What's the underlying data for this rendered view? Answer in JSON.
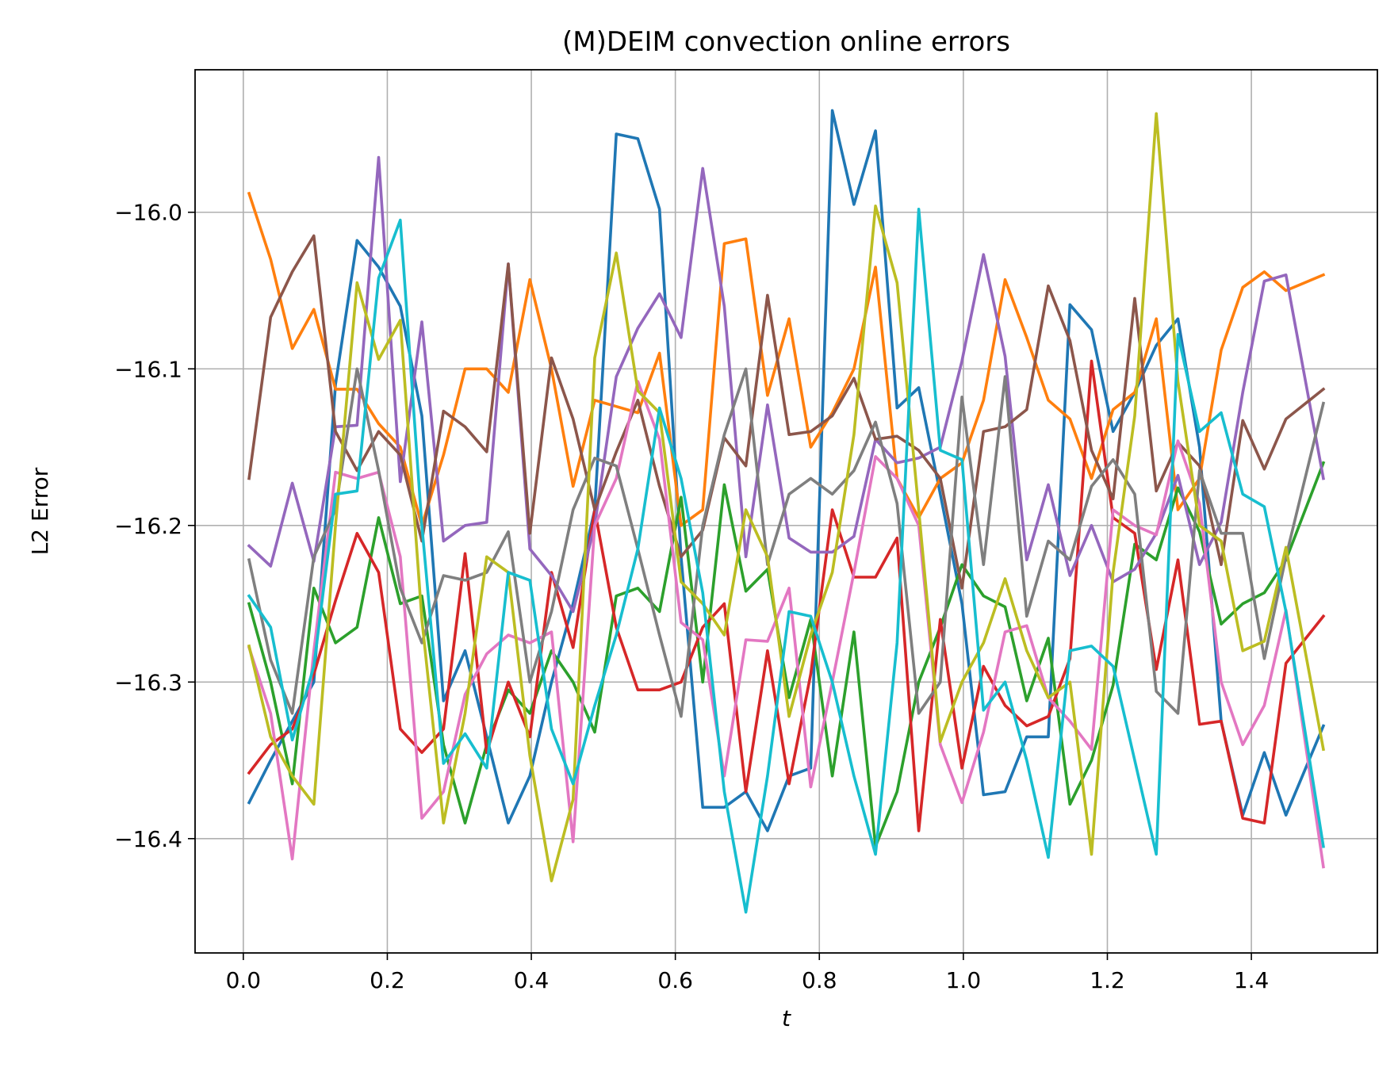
{
  "chart_data": {
    "type": "line",
    "title": "(M)DEIM convection online errors",
    "xlabel": "t",
    "ylabel": "L2 Error",
    "xlim": [
      -0.067,
      1.575
    ],
    "ylim": [
      -16.473,
      -15.909
    ],
    "xticks": [
      0.0,
      0.2,
      0.4,
      0.6,
      0.8,
      1.0,
      1.2,
      1.4
    ],
    "xtick_labels": [
      "0.0",
      "0.2",
      "0.4",
      "0.6",
      "0.8",
      "1.0",
      "1.2",
      "1.4"
    ],
    "yticks": [
      -16.0,
      -16.1,
      -16.2,
      -16.3,
      -16.4
    ],
    "ytick_labels": [
      "−16.0",
      "−16.1",
      "−16.2",
      "−16.3",
      "−16.4"
    ],
    "grid": true,
    "legend": "none",
    "x": [
      0.008,
      0.038,
      0.068,
      0.098,
      0.128,
      0.158,
      0.188,
      0.218,
      0.248,
      0.278,
      0.308,
      0.338,
      0.368,
      0.398,
      0.428,
      0.458,
      0.488,
      0.518,
      0.548,
      0.578,
      0.608,
      0.638,
      0.668,
      0.698,
      0.728,
      0.758,
      0.788,
      0.818,
      0.848,
      0.878,
      0.908,
      0.938,
      0.968,
      0.998,
      1.028,
      1.058,
      1.088,
      1.118,
      1.148,
      1.178,
      1.208,
      1.238,
      1.268,
      1.298,
      1.328,
      1.358,
      1.388,
      1.418,
      1.448,
      1.5
    ],
    "series": [
      {
        "color": "#1f77b4",
        "values": [
          -16.377,
          -16.35,
          -16.325,
          -16.3,
          -16.11,
          -16.018,
          -16.035,
          -16.06,
          -16.13,
          -16.312,
          -16.28,
          -16.335,
          -16.39,
          -16.36,
          -16.3,
          -16.25,
          -16.19,
          -15.95,
          -15.953,
          -15.998,
          -16.22,
          -16.38,
          -16.38,
          -16.37,
          -16.395,
          -16.36,
          -16.355,
          -15.935,
          -15.995,
          -15.948,
          -16.125,
          -16.112,
          -16.18,
          -16.25,
          -16.372,
          -16.37,
          -16.335,
          -16.335,
          -16.059,
          -16.075,
          -16.14,
          -16.115,
          -16.085,
          -16.068,
          -16.15,
          -16.325,
          -16.385,
          -16.345,
          -16.385,
          -16.328
        ]
      },
      {
        "color": "#ff7f0e",
        "values": [
          -15.988,
          -16.03,
          -16.087,
          -16.062,
          -16.113,
          -16.113,
          -16.135,
          -16.15,
          -16.2,
          -16.155,
          -16.1,
          -16.1,
          -16.115,
          -16.043,
          -16.1,
          -16.175,
          -16.12,
          -16.124,
          -16.128,
          -16.09,
          -16.2,
          -16.19,
          -16.02,
          -16.017,
          -16.117,
          -16.068,
          -16.15,
          -16.128,
          -16.1,
          -16.035,
          -16.17,
          -16.195,
          -16.17,
          -16.16,
          -16.12,
          -16.043,
          -16.08,
          -16.12,
          -16.132,
          -16.17,
          -16.126,
          -16.115,
          -16.068,
          -16.19,
          -16.17,
          -16.088,
          -16.048,
          -16.038,
          -16.05,
          -16.04
        ]
      },
      {
        "color": "#2ca02c",
        "values": [
          -16.25,
          -16.3,
          -16.365,
          -16.24,
          -16.275,
          -16.265,
          -16.195,
          -16.25,
          -16.245,
          -16.34,
          -16.39,
          -16.34,
          -16.305,
          -16.32,
          -16.28,
          -16.3,
          -16.332,
          -16.245,
          -16.24,
          -16.255,
          -16.182,
          -16.3,
          -16.174,
          -16.242,
          -16.228,
          -16.31,
          -16.26,
          -16.36,
          -16.268,
          -16.405,
          -16.37,
          -16.3,
          -16.265,
          -16.225,
          -16.245,
          -16.252,
          -16.312,
          -16.272,
          -16.378,
          -16.35,
          -16.302,
          -16.212,
          -16.222,
          -16.176,
          -16.204,
          -16.263,
          -16.25,
          -16.243,
          -16.222,
          -16.16
        ]
      },
      {
        "color": "#d62728",
        "values": [
          -16.358,
          -16.34,
          -16.33,
          -16.295,
          -16.248,
          -16.205,
          -16.23,
          -16.33,
          -16.345,
          -16.33,
          -16.218,
          -16.345,
          -16.3,
          -16.335,
          -16.23,
          -16.278,
          -16.19,
          -16.265,
          -16.305,
          -16.305,
          -16.3,
          -16.265,
          -16.25,
          -16.37,
          -16.28,
          -16.365,
          -16.295,
          -16.19,
          -16.233,
          -16.233,
          -16.208,
          -16.395,
          -16.26,
          -16.355,
          -16.29,
          -16.315,
          -16.328,
          -16.322,
          -16.285,
          -16.095,
          -16.195,
          -16.205,
          -16.292,
          -16.222,
          -16.327,
          -16.325,
          -16.387,
          -16.39,
          -16.288,
          -16.258
        ]
      },
      {
        "color": "#9467bd",
        "values": [
          -16.213,
          -16.226,
          -16.173,
          -16.223,
          -16.137,
          -16.136,
          -15.965,
          -16.172,
          -16.07,
          -16.21,
          -16.2,
          -16.198,
          -16.033,
          -16.215,
          -16.232,
          -16.255,
          -16.2,
          -16.105,
          -16.074,
          -16.052,
          -16.08,
          -15.972,
          -16.06,
          -16.22,
          -16.123,
          -16.208,
          -16.217,
          -16.217,
          -16.207,
          -16.145,
          -16.16,
          -16.157,
          -16.15,
          -16.095,
          -16.027,
          -16.092,
          -16.222,
          -16.174,
          -16.232,
          -16.2,
          -16.236,
          -16.228,
          -16.205,
          -16.168,
          -16.225,
          -16.198,
          -16.115,
          -16.044,
          -16.04,
          -16.17
        ]
      },
      {
        "color": "#8c564b",
        "values": [
          -16.17,
          -16.067,
          -16.038,
          -16.015,
          -16.14,
          -16.165,
          -16.14,
          -16.155,
          -16.21,
          -16.127,
          -16.137,
          -16.153,
          -16.033,
          -16.205,
          -16.093,
          -16.132,
          -16.19,
          -16.153,
          -16.12,
          -16.175,
          -16.22,
          -16.203,
          -16.144,
          -16.162,
          -16.053,
          -16.142,
          -16.14,
          -16.13,
          -16.106,
          -16.145,
          -16.143,
          -16.152,
          -16.17,
          -16.24,
          -16.14,
          -16.137,
          -16.126,
          -16.047,
          -16.082,
          -16.152,
          -16.183,
          -16.055,
          -16.178,
          -16.147,
          -16.162,
          -16.225,
          -16.133,
          -16.164,
          -16.132,
          -16.113
        ]
      },
      {
        "color": "#e377c2",
        "values": [
          -16.278,
          -16.32,
          -16.413,
          -16.28,
          -16.166,
          -16.17,
          -16.166,
          -16.22,
          -16.387,
          -16.37,
          -16.308,
          -16.282,
          -16.27,
          -16.275,
          -16.268,
          -16.402,
          -16.2,
          -16.17,
          -16.108,
          -16.145,
          -16.262,
          -16.273,
          -16.36,
          -16.273,
          -16.274,
          -16.24,
          -16.367,
          -16.3,
          -16.23,
          -16.156,
          -16.17,
          -16.2,
          -16.34,
          -16.377,
          -16.332,
          -16.268,
          -16.264,
          -16.31,
          -16.325,
          -16.343,
          -16.19,
          -16.2,
          -16.206,
          -16.146,
          -16.186,
          -16.3,
          -16.34,
          -16.315,
          -16.254,
          -16.418
        ]
      },
      {
        "color": "#7f7f7f",
        "values": [
          -16.222,
          -16.286,
          -16.32,
          -16.22,
          -16.19,
          -16.1,
          -16.165,
          -16.24,
          -16.275,
          -16.232,
          -16.235,
          -16.23,
          -16.204,
          -16.3,
          -16.255,
          -16.19,
          -16.157,
          -16.162,
          -16.215,
          -16.27,
          -16.322,
          -16.2,
          -16.142,
          -16.1,
          -16.225,
          -16.18,
          -16.17,
          -16.18,
          -16.165,
          -16.134,
          -16.186,
          -16.32,
          -16.3,
          -16.118,
          -16.225,
          -16.105,
          -16.258,
          -16.21,
          -16.222,
          -16.175,
          -16.158,
          -16.18,
          -16.306,
          -16.32,
          -16.165,
          -16.205,
          -16.205,
          -16.285,
          -16.22,
          -16.122
        ]
      },
      {
        "color": "#bcbd22",
        "values": [
          -16.277,
          -16.335,
          -16.36,
          -16.378,
          -16.2,
          -16.045,
          -16.094,
          -16.069,
          -16.26,
          -16.39,
          -16.32,
          -16.22,
          -16.23,
          -16.347,
          -16.427,
          -16.375,
          -16.093,
          -16.026,
          -16.114,
          -16.128,
          -16.236,
          -16.25,
          -16.27,
          -16.19,
          -16.22,
          -16.322,
          -16.27,
          -16.23,
          -16.142,
          -15.996,
          -16.045,
          -16.19,
          -16.338,
          -16.3,
          -16.275,
          -16.234,
          -16.28,
          -16.31,
          -16.3,
          -16.41,
          -16.23,
          -16.13,
          -15.937,
          -16.108,
          -16.2,
          -16.21,
          -16.28,
          -16.274,
          -16.214,
          -16.343
        ]
      },
      {
        "color": "#17becf",
        "values": [
          -16.245,
          -16.265,
          -16.337,
          -16.29,
          -16.18,
          -16.178,
          -16.042,
          -16.005,
          -16.2,
          -16.352,
          -16.333,
          -16.355,
          -16.23,
          -16.235,
          -16.33,
          -16.365,
          -16.315,
          -16.27,
          -16.215,
          -16.125,
          -16.17,
          -16.243,
          -16.37,
          -16.447,
          -16.36,
          -16.255,
          -16.258,
          -16.3,
          -16.36,
          -16.41,
          -16.275,
          -15.998,
          -16.152,
          -16.158,
          -16.318,
          -16.3,
          -16.35,
          -16.412,
          -16.28,
          -16.277,
          -16.29,
          -16.35,
          -16.41,
          -16.078,
          -16.14,
          -16.128,
          -16.18,
          -16.188,
          -16.255,
          -16.405
        ]
      }
    ]
  }
}
